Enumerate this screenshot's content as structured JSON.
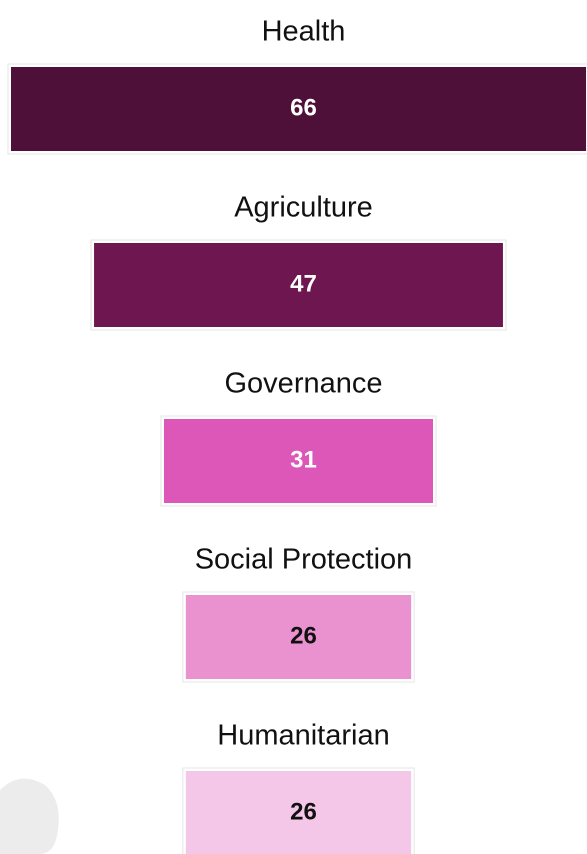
{
  "chart_data": {
    "type": "bar",
    "categories": [
      "Health",
      "Agriculture",
      "Governance",
      "Social Protection",
      "Humanitarian"
    ],
    "values": [
      66,
      47,
      31,
      26,
      26
    ],
    "colors": [
      "#4e1038",
      "#6e1650",
      "#dc57b8",
      "#ea92d0",
      "#f4c6e8"
    ]
  }
}
